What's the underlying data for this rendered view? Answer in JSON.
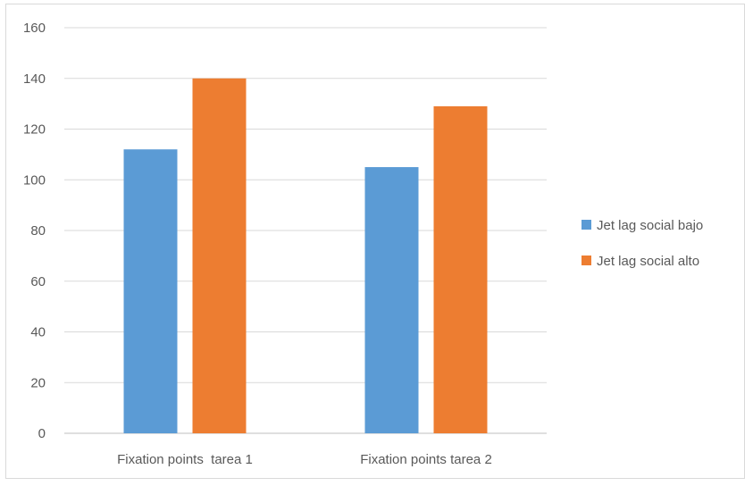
{
  "chart_data": {
    "type": "bar",
    "categories": [
      "Fixation points  tarea 1",
      "Fixation points tarea 2"
    ],
    "series": [
      {
        "name": "Jet lag social bajo",
        "values": [
          112,
          105
        ],
        "color": "#5b9bd5"
      },
      {
        "name": "Jet lag social alto",
        "values": [
          140,
          129
        ],
        "color": "#ed7d31"
      }
    ],
    "ylim": [
      0,
      160
    ],
    "yticks": [
      0,
      20,
      40,
      60,
      80,
      100,
      120,
      140,
      160
    ],
    "grid": true,
    "legend_position": "right",
    "title": "",
    "xlabel": "",
    "ylabel": ""
  }
}
